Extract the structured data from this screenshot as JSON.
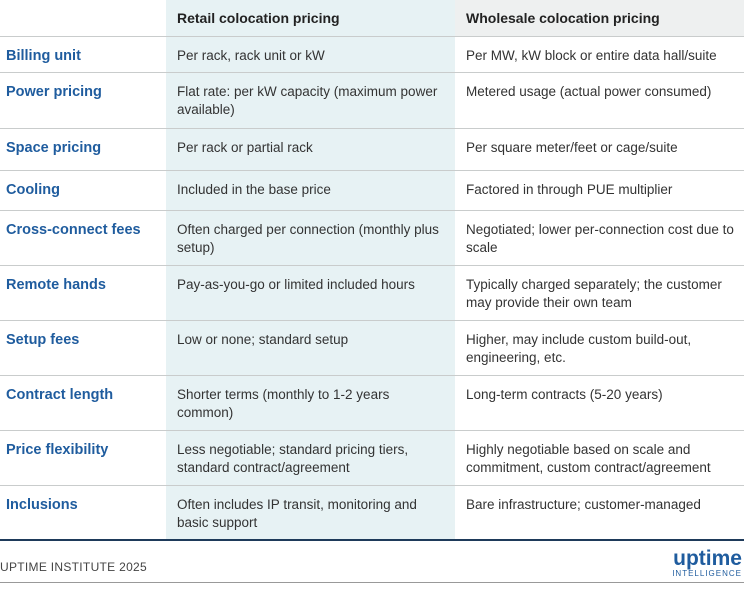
{
  "header": {
    "columns": [
      "Retail colocation pricing",
      "Wholesale colocation pricing"
    ]
  },
  "table": {
    "rows": [
      [
        "Billing unit",
        "Per rack, rack unit or kW",
        "Per MW, kW block or entire data hall/suite"
      ],
      [
        "Power pricing",
        "Flat rate: per kW capacity (maximum power available)",
        "Metered usage (actual power consumed)"
      ],
      [
        "Space pricing",
        "Per rack or partial rack",
        "Per square meter/feet or cage/suite"
      ],
      [
        "Cooling",
        "Included in the base price",
        "Factored in through PUE multiplier"
      ],
      [
        "Cross-connect fees",
        "Often charged per connection (monthly plus setup)",
        "Negotiated; lower per-connection cost due to scale"
      ],
      [
        "Remote hands",
        "Pay-as-you-go or limited included hours",
        "Typically charged separately; the customer may provide their own team"
      ],
      [
        "Setup fees",
        "Low or none; standard setup",
        "Higher, may include custom build-out, engineering, etc."
      ],
      [
        "Contract length",
        "Shorter terms (monthly to 1-2 years common)",
        "Long-term contracts (5-20 years)"
      ],
      [
        "Price flexibility",
        "Less negotiable; standard pricing tiers, standard contract/agreement",
        "Highly negotiable based on scale and commitment, custom contract/agreement"
      ],
      [
        "Inclusions",
        "Often includes IP transit, monitoring and basic support",
        "Bare infrastructure; customer-managed"
      ]
    ]
  },
  "footer": {
    "source": "UPTIME INSTITUTE 2025",
    "logo": "uptime",
    "tagline": "INTELLIGENCE"
  }
}
